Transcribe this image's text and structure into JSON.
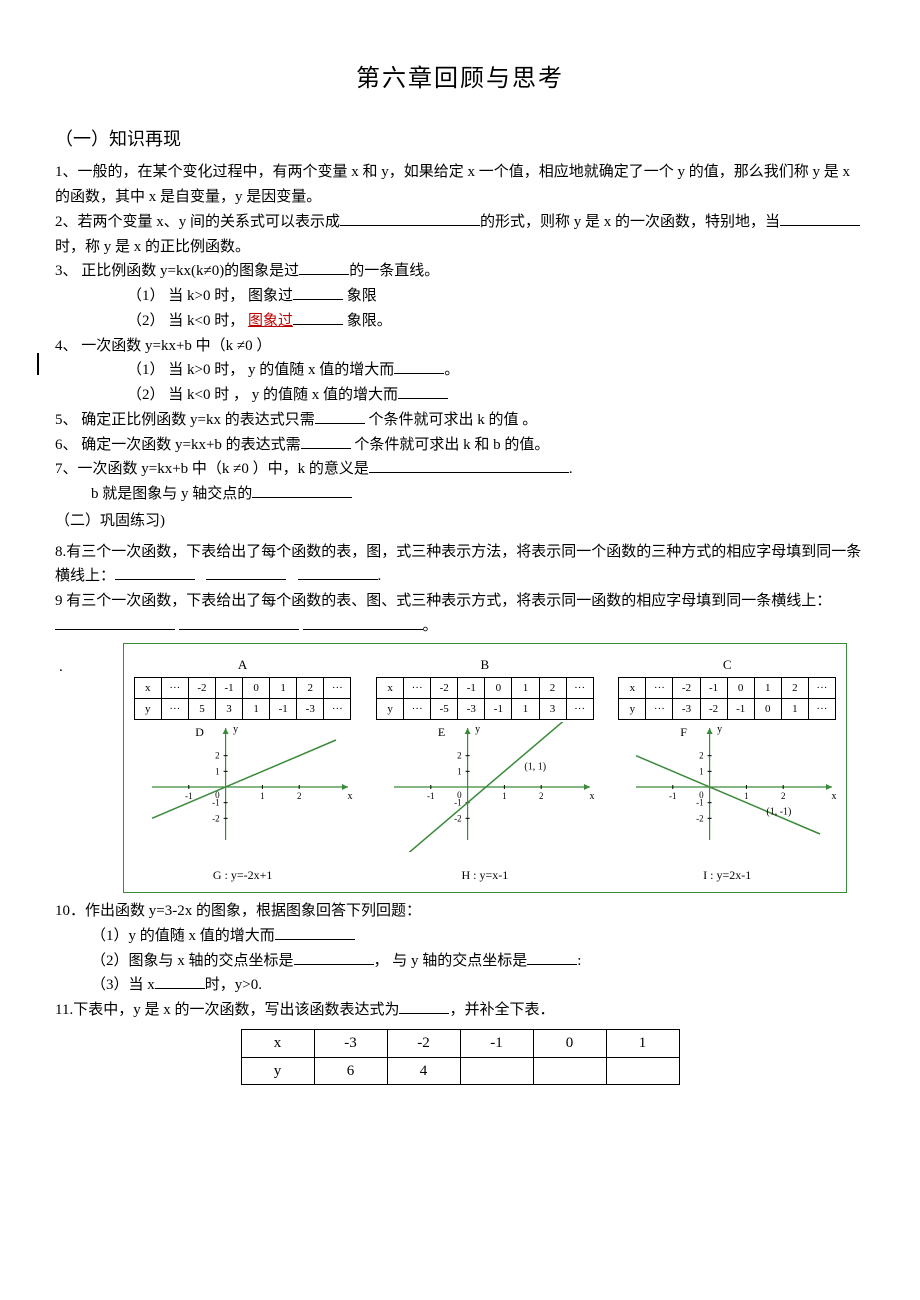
{
  "title": "第六章回顾与思考",
  "section1": "（一）知识再现",
  "q1": "1、一般的，在某个变化过程中，有两个变量 x 和 y，如果给定 x 一个值，相应地就确定了一个 y 的值，那么我们称 y 是 x 的函数，其中 x 是自变量，y 是因变量。",
  "q2a": "2、若两个变量 x、y 间的关系式可以表示成",
  "q2b": "的形式，则称 y 是 x 的一次函数，特别地，当",
  "q2c": "时，称 y 是 x 的正比例函数。",
  "q3": "3、   正比例函数 y=kx(k≠0)的图象是过",
  "q3b": "的一条直线。",
  "q3_1a": "（1）  当 k>0 时，  图象过",
  "q3_1b": " 象限",
  "q3_2a": "（2）  当 k<0 时，  ",
  "q3_2red": "图象过",
  "q3_2b": " 象限。",
  "q4": "4、   一次函数 y=kx+b 中（k  ≠0 ）",
  "q4_1a": "（1）  当 k>0 时，    y 的值随 x 值的增大而",
  "q4_1b": "。",
  "q4_2a": "（2）  当 k<0 时  ，  y 的值随 x 值的增大而",
  "q5a": "5、   确定正比例函数 y=kx    的表达式只需",
  "q5b": " 个条件就可求出 k 的值 。",
  "q6a": "6、   确定一次函数 y=kx+b  的表达式需",
  "q6b": " 个条件就可求出 k 和 b 的值。",
  "q7a": "7、一次函数 y=kx+b 中（k  ≠0  ）中，k 的意义是",
  "q7b": ".",
  "q7c": "b 就是图象与 y 轴交点的",
  "section2": "（二）巩固练习)",
  "q8a": "8.有三个一次函数，下表给出了每个函数的表，图，式三种表示方法，将表示同一个函数的三种方式的相应字母填到同一条横线上：",
  "q8b": ".",
  "q9a": "9 有三个一次函数，下表给出了每个函数的表、图、式三种表示方式，将表示同一函数的相应字母填到同一条横线上：",
  "q9b": "。",
  "figure": {
    "border_color": "#3a8a3a",
    "tables": [
      {
        "label": "A",
        "header": [
          "x",
          "···",
          "-2",
          "-1",
          "0",
          "1",
          "2",
          "···"
        ],
        "row": [
          "y",
          "···",
          "5",
          "3",
          "1",
          "-1",
          "-3",
          "···"
        ]
      },
      {
        "label": "B",
        "header": [
          "x",
          "···",
          "-2",
          "-1",
          "0",
          "1",
          "2",
          "···"
        ],
        "row": [
          "y",
          "···",
          "-5",
          "-3",
          "-1",
          "1",
          "3",
          "···"
        ]
      },
      {
        "label": "C",
        "header": [
          "x",
          "···",
          "-2",
          "-1",
          "0",
          "1",
          "2",
          "···"
        ],
        "row": [
          "y",
          "···",
          "-3",
          "-2",
          "-1",
          "0",
          "1",
          "···"
        ]
      }
    ],
    "charts": [
      {
        "label": "D",
        "slope": 1,
        "intercept": 0,
        "point_label": "",
        "eq": "G : y=-2x+1"
      },
      {
        "label": "E",
        "slope": 2,
        "intercept": -1,
        "point_label": "(1, 1)",
        "eq": "H : y=x-1"
      },
      {
        "label": "F",
        "slope": -1,
        "intercept": 0,
        "point_label": "(1, -1)",
        "eq": "I : y=2x-1"
      }
    ],
    "axis": {
      "xmin": -2,
      "xmax": 3,
      "ymin": -3,
      "ymax": 3,
      "ticks_x": [
        -1,
        1,
        2
      ],
      "ticks_y": [
        -2,
        -1,
        1,
        2
      ]
    }
  },
  "q10": "10．作出函数 y=3-2x 的图象，根据图象回答下列回题：",
  "q10_1": "（1）y 的值随 x 值的增大而",
  "q10_2a": "（2）图象与 x 轴的交点坐标是",
  "q10_2b": "，  与 y 轴的交点坐标是",
  "q10_2c": ":",
  "q10_3a": "（3）当 x",
  "q10_3b": "时，y>0.",
  "q11a": "11.下表中，y 是 x 的一次函数，写出该函数表达式为",
  "q11b": "，并补全下表．",
  "q11_table": {
    "headers": [
      "x",
      "-3",
      "-2",
      "-1",
      "0",
      "1"
    ],
    "row": [
      "y",
      "6",
      "4",
      "",
      "",
      ""
    ]
  }
}
